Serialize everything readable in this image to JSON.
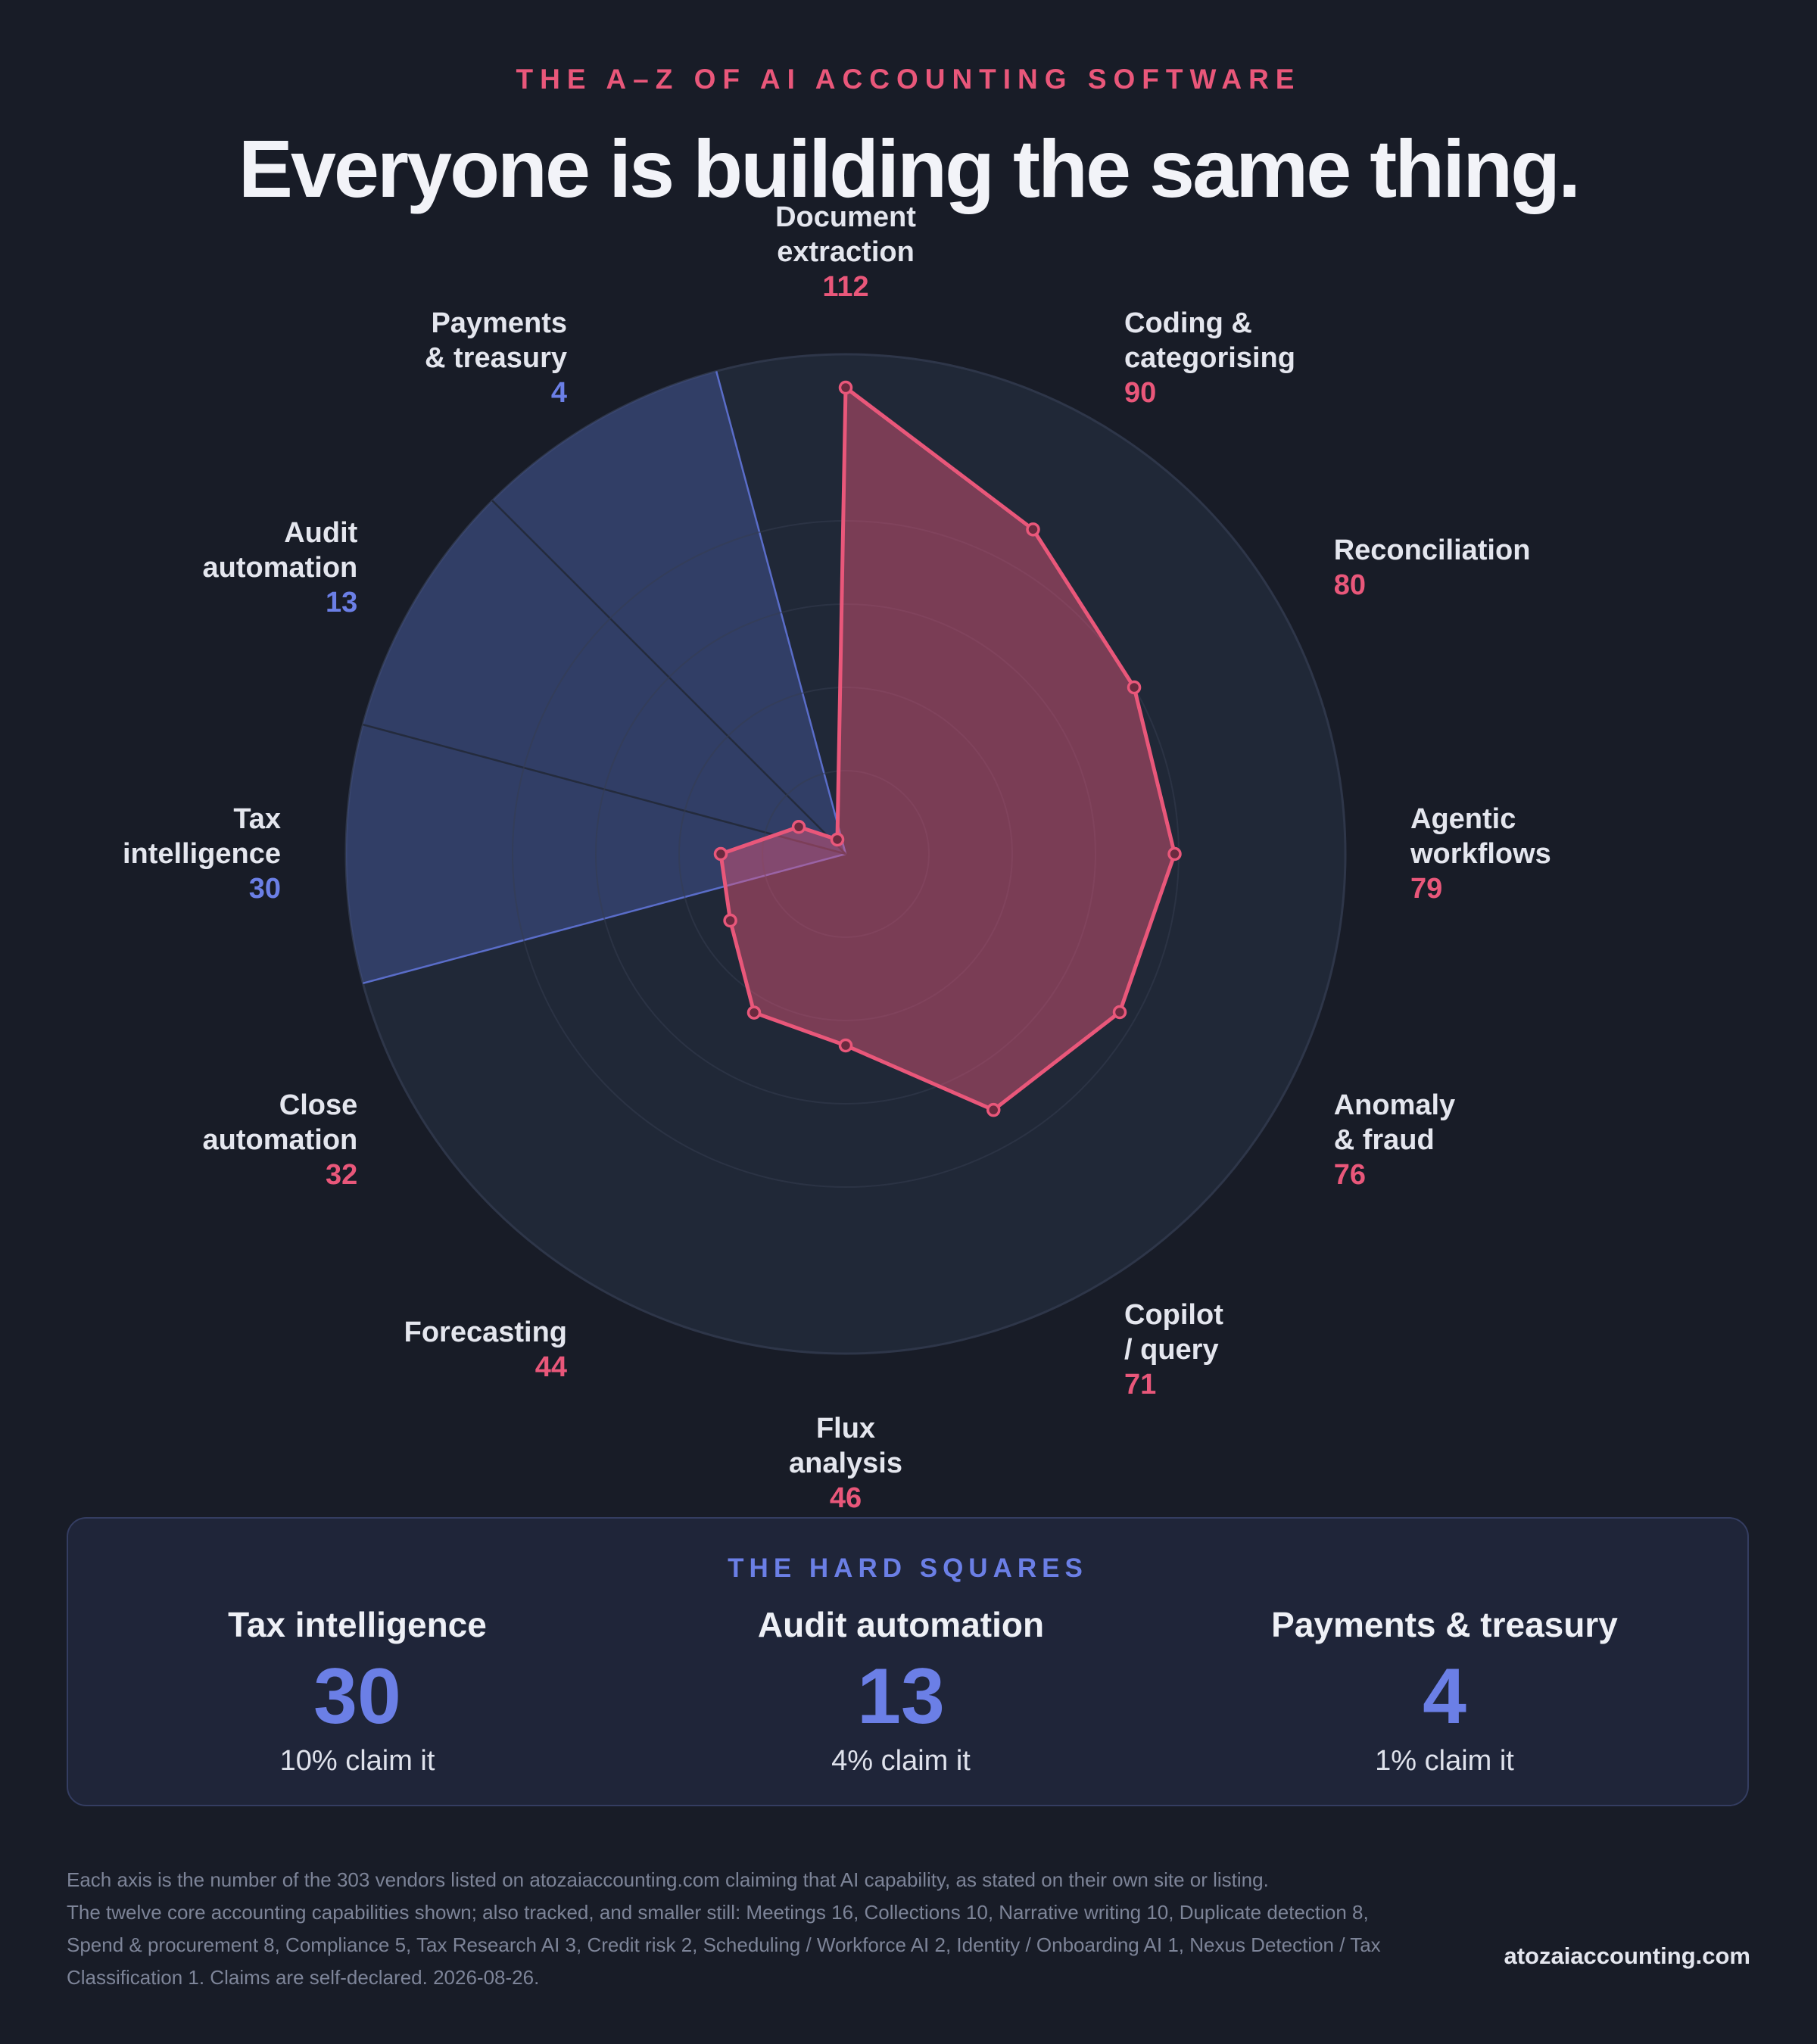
{
  "header": {
    "kicker": "THE A–Z OF AI ACCOUNTING SOFTWARE",
    "title": "Everyone is building the same thing."
  },
  "chart_data": {
    "type": "radar",
    "rmax": 120,
    "grid_levels": [
      20,
      40,
      60,
      80,
      120
    ],
    "axes": [
      {
        "name": "Document\nextraction",
        "value": 112,
        "group": "core"
      },
      {
        "name": "Coding &\ncategorising",
        "value": 90,
        "group": "core"
      },
      {
        "name": "Reconciliation",
        "value": 80,
        "group": "core"
      },
      {
        "name": "Agentic\nworkflows",
        "value": 79,
        "group": "core"
      },
      {
        "name": "Anomaly\n& fraud",
        "value": 76,
        "group": "core"
      },
      {
        "name": "Copilot\n/ query",
        "value": 71,
        "group": "core"
      },
      {
        "name": "Flux\nanalysis",
        "value": 46,
        "group": "core"
      },
      {
        "name": "Forecasting",
        "value": 44,
        "group": "core"
      },
      {
        "name": "Close\nautomation",
        "value": 32,
        "group": "core"
      },
      {
        "name": "Tax\nintelligence",
        "value": 30,
        "group": "hard"
      },
      {
        "name": "Audit\nautomation",
        "value": 13,
        "group": "hard"
      },
      {
        "name": "Payments\n& treasury",
        "value": 4,
        "group": "hard"
      }
    ],
    "colors": {
      "polygon_stroke": "#e9577a",
      "polygon_fill": "#e9577a",
      "hard_wedge_fill": "#4a5ca8",
      "hard_label": "#6b7fe6",
      "core_label": "#e9577a",
      "disc": "#202837"
    }
  },
  "hard_squares": {
    "title": "THE HARD SQUARES",
    "items": [
      {
        "name": "Tax intelligence",
        "value": "30",
        "share": "10% claim it"
      },
      {
        "name": "Audit automation",
        "value": "13",
        "share": "4% claim it"
      },
      {
        "name": "Payments & treasury",
        "value": "4",
        "share": "1% claim it"
      }
    ]
  },
  "footnote": {
    "line1": "Each axis is the number of the 303 vendors listed on atozaiaccounting.com claiming that AI capability, as stated on their own site or listing.",
    "line2": "The twelve core accounting capabilities shown; also tracked, and smaller still: Meetings 16, Collections 10, Narrative writing 10, Duplicate detection 8, Spend & procurement 8, Compliance 5, Tax Research AI 3, Credit risk 2, Scheduling / Workforce AI 2, Identity / Onboarding AI 1, Nexus Detection / Tax Classification 1. Claims are self-declared. 2026-08-26."
  },
  "site": "atozaiaccounting.com"
}
